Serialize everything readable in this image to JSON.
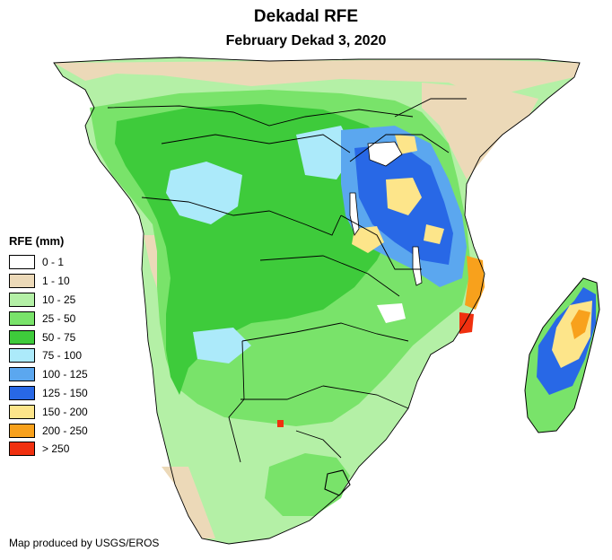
{
  "map": {
    "title": "Dekadal RFE",
    "subtitle": "February Dekad 3, 2020",
    "credit": "Map produced by USGS/EROS"
  },
  "legend": {
    "title": "RFE (mm)",
    "items": [
      {
        "label": "0 - 1",
        "color": "#ffffff"
      },
      {
        "label": "1 - 10",
        "color": "#ecd9b8"
      },
      {
        "label": "10 - 25",
        "color": "#b4f0a6"
      },
      {
        "label": "25 - 50",
        "color": "#79e36a"
      },
      {
        "label": "50 - 75",
        "color": "#3ecb3b"
      },
      {
        "label": "75 - 100",
        "color": "#aceafa"
      },
      {
        "label": "100 - 125",
        "color": "#5ba7ef"
      },
      {
        "label": "125 - 150",
        "color": "#2868e6"
      },
      {
        "label": "150 - 200",
        "color": "#fde58a"
      },
      {
        "label": "200 - 250",
        "color": "#f8a11c"
      },
      {
        "label": "> 250",
        "color": "#f0300f"
      }
    ]
  }
}
